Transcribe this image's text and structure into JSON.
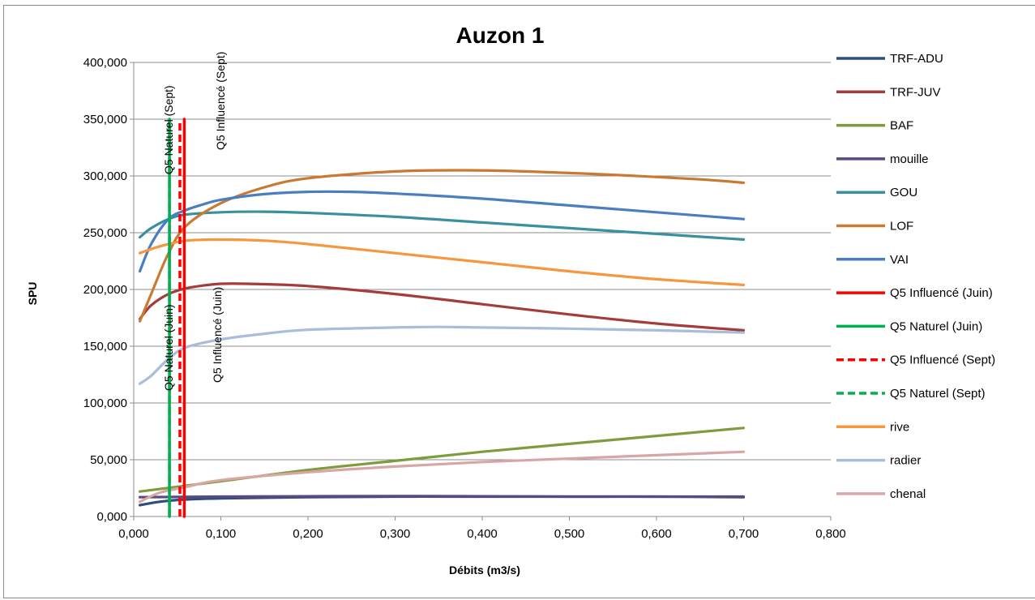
{
  "chart_data": {
    "type": "line",
    "title": "Auzon 1",
    "xlabel": "Débits (m3/s)",
    "ylabel": "SPU",
    "xlim": [
      0,
      0.8
    ],
    "ylim": [
      0,
      400000
    ],
    "x_ticks": [
      "0,000",
      "0,100",
      "0,200",
      "0,300",
      "0,400",
      "0,500",
      "0,600",
      "0,700",
      "0,800"
    ],
    "y_ticks": [
      "0,000",
      "50,000",
      "100,000",
      "150,000",
      "200,000",
      "250,000",
      "300,000",
      "350,000",
      "400,000"
    ],
    "grid": "horizontal",
    "legend_position": "right",
    "series": [
      {
        "name": "TRF-ADU",
        "color": "#2e4f7a",
        "dash": false,
        "x": [
          0.007,
          0.03,
          0.06,
          0.1,
          0.2,
          0.3,
          0.4,
          0.5,
          0.6,
          0.7
        ],
        "y": [
          10000,
          13000,
          15000,
          16000,
          17000,
          17500,
          17500,
          17500,
          17500,
          17000
        ]
      },
      {
        "name": "TRF-JUV",
        "color": "#a33c3a",
        "dash": false,
        "x": [
          0.007,
          0.02,
          0.04,
          0.06,
          0.08,
          0.1,
          0.13,
          0.2,
          0.3,
          0.4,
          0.5,
          0.6,
          0.7
        ],
        "y": [
          174000,
          186000,
          196000,
          201000,
          203500,
          205000,
          205000,
          203000,
          196000,
          187000,
          178000,
          170000,
          164000
        ]
      },
      {
        "name": "BAF",
        "color": "#7d9c3c",
        "dash": false,
        "x": [
          0.007,
          0.1,
          0.2,
          0.3,
          0.4,
          0.5,
          0.6,
          0.7
        ],
        "y": [
          22000,
          31000,
          41000,
          49000,
          57000,
          64000,
          71000,
          78000
        ]
      },
      {
        "name": "mouille",
        "color": "#5b4a82",
        "dash": false,
        "x": [
          0.007,
          0.1,
          0.2,
          0.3,
          0.4,
          0.5,
          0.6,
          0.7
        ],
        "y": [
          17000,
          17500,
          17800,
          18000,
          17800,
          17500,
          17500,
          17500
        ]
      },
      {
        "name": "GOU",
        "color": "#3a8fa0",
        "dash": false,
        "x": [
          0.007,
          0.02,
          0.04,
          0.06,
          0.1,
          0.15,
          0.2,
          0.3,
          0.4,
          0.5,
          0.6,
          0.7
        ],
        "y": [
          246000,
          254000,
          262000,
          266000,
          268000,
          268500,
          267500,
          264000,
          259000,
          254000,
          249000,
          244000
        ]
      },
      {
        "name": "LOF",
        "color": "#c97a32",
        "dash": false,
        "x": [
          0.007,
          0.02,
          0.04,
          0.06,
          0.1,
          0.15,
          0.2,
          0.3,
          0.38,
          0.45,
          0.55,
          0.65,
          0.7
        ],
        "y": [
          172000,
          196000,
          232000,
          256000,
          276000,
          290000,
          298000,
          304000,
          305000,
          304000,
          301000,
          297000,
          294000
        ]
      },
      {
        "name": "VAI",
        "color": "#4a7ec0",
        "dash": false,
        "x": [
          0.007,
          0.02,
          0.04,
          0.06,
          0.08,
          0.1,
          0.15,
          0.2,
          0.25,
          0.3,
          0.4,
          0.5,
          0.6,
          0.7
        ],
        "y": [
          216000,
          240000,
          262000,
          270000,
          275000,
          279000,
          284000,
          286000,
          286000,
          284500,
          280000,
          274000,
          268000,
          262000
        ]
      },
      {
        "name": "Q5 Influencé (Juin)",
        "color": "#ff0000",
        "dash": false,
        "x": [
          0.058,
          0.058
        ],
        "y": [
          0,
          350000
        ]
      },
      {
        "name": "Q5 Naturel (Juin)",
        "color": "#00b050",
        "dash": false,
        "x": [
          0.041,
          0.041
        ],
        "y": [
          0,
          350000
        ]
      },
      {
        "name": "Q5 Influencé (Sept)",
        "color": "#ff0000",
        "dash": true,
        "x": [
          0.053,
          0.053
        ],
        "y": [
          0,
          350000
        ]
      },
      {
        "name": "Q5 Naturel (Sept)",
        "color": "#00b050",
        "dash": true,
        "x": [
          0.041,
          0.041
        ],
        "y": [
          0,
          350000
        ]
      },
      {
        "name": "rive",
        "color": "#f7963d",
        "dash": false,
        "x": [
          0.007,
          0.03,
          0.06,
          0.1,
          0.15,
          0.2,
          0.3,
          0.4,
          0.5,
          0.6,
          0.7
        ],
        "y": [
          232000,
          238000,
          243000,
          244000,
          243000,
          240000,
          232000,
          224000,
          216000,
          209000,
          204000
        ]
      },
      {
        "name": "radier",
        "color": "#a9bcda",
        "dash": false,
        "x": [
          0.007,
          0.02,
          0.04,
          0.06,
          0.1,
          0.15,
          0.2,
          0.3,
          0.35,
          0.4,
          0.5,
          0.6,
          0.7
        ],
        "y": [
          117000,
          124000,
          139000,
          149000,
          156000,
          161000,
          164500,
          166500,
          167000,
          166500,
          165500,
          164000,
          162000
        ]
      },
      {
        "name": "chenal",
        "color": "#d9a6a6",
        "dash": false,
        "x": [
          0.007,
          0.03,
          0.06,
          0.1,
          0.2,
          0.3,
          0.4,
          0.5,
          0.6,
          0.7
        ],
        "y": [
          13000,
          21000,
          26000,
          32000,
          39000,
          44000,
          48000,
          51000,
          54000,
          57000
        ]
      }
    ],
    "annotations": [
      "Q5 Naturel (Sept)",
      "Q5 Influencé (Sept)",
      "Q5 Naturel (Juin)",
      "Q5 Influencé (Juin)"
    ]
  }
}
